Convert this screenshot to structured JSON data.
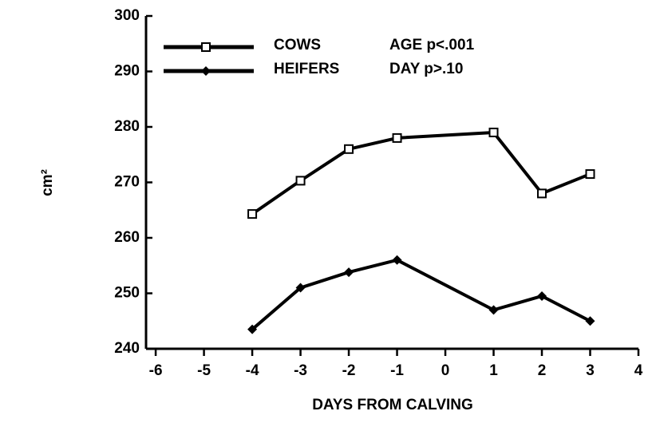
{
  "chart_data": {
    "type": "line",
    "xlabel": "DAYS FROM CALVING",
    "ylabel": "cm²",
    "annotations": [
      "AGE p<.001",
      "DAY p>.10"
    ],
    "x": [
      -4,
      -3,
      -2,
      -1,
      1,
      2,
      3
    ],
    "series": [
      {
        "name": "COWS",
        "color": "#000000",
        "marker": "square-open",
        "values": [
          264.3,
          270.3,
          276,
          278,
          279,
          268,
          271.5
        ]
      },
      {
        "name": "HEIFERS",
        "color": "#000000",
        "marker": "diamond-filled",
        "values": [
          243.5,
          251,
          253.8,
          256,
          247,
          249.5,
          245
        ]
      }
    ],
    "xlim": [
      -6.2,
      4
    ],
    "xticks": [
      -6,
      -5,
      -4,
      -3,
      -2,
      -1,
      0,
      1,
      2,
      3,
      4
    ],
    "ylim": [
      240,
      300
    ],
    "yticks": [
      240,
      250,
      260,
      270,
      280,
      290,
      300
    ],
    "grid": false,
    "legend": "upper left"
  }
}
